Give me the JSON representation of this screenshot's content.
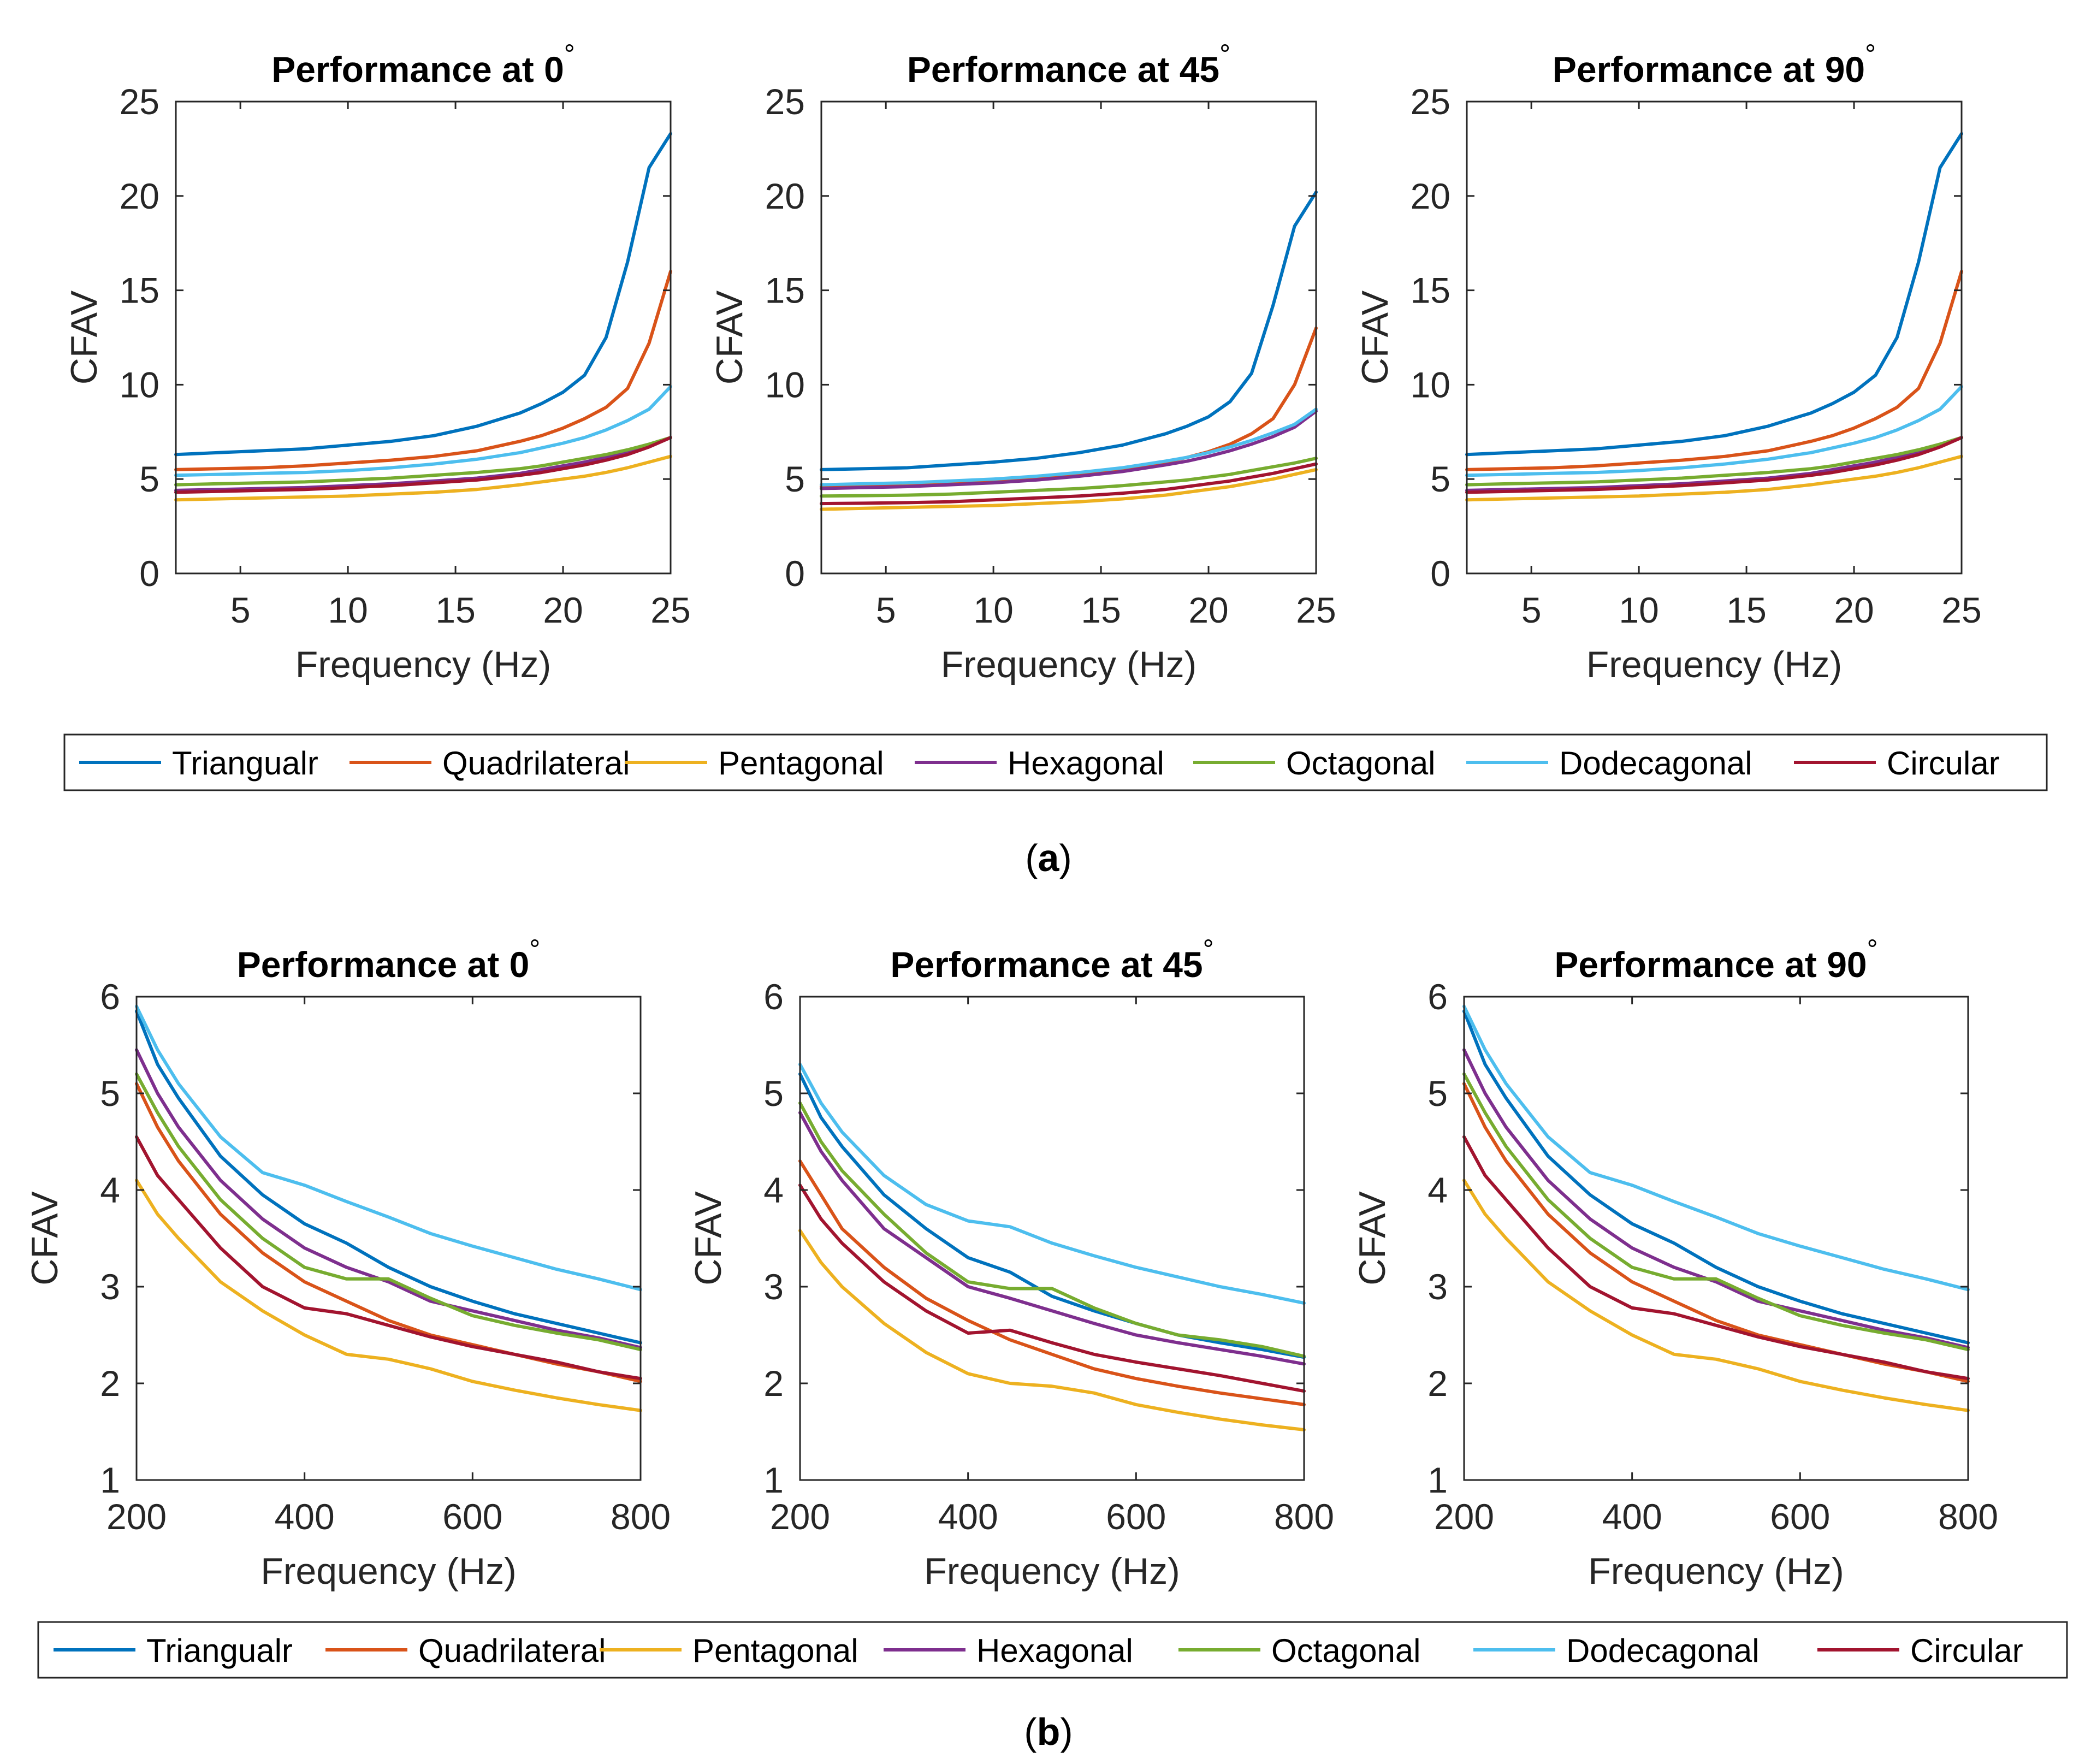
{
  "legend_labels": [
    "Triangualr",
    "Quadrilateral",
    "Pentagonal",
    "Hexagonal",
    "Octagonal",
    "Dodecagonal",
    "Circular"
  ],
  "series_colors": [
    "#0072BD",
    "#D95319",
    "#EDB120",
    "#7E2F8E",
    "#77AC30",
    "#4DBEEE",
    "#A2142F"
  ],
  "captions": {
    "a": {
      "open": "(",
      "letter": "a",
      "close": ")"
    },
    "b": {
      "open": "(",
      "letter": "b",
      "close": ")"
    }
  },
  "chart_data": [
    {
      "panel": "a1",
      "type": "line",
      "title": "Performance at 0",
      "title_suffix": "°",
      "xlabel": "Frequency (Hz)",
      "ylabel": "CFAV",
      "xlim": [
        2,
        25
      ],
      "ylim": [
        0,
        25
      ],
      "xticks": [
        5,
        10,
        15,
        20,
        25
      ],
      "yticks": [
        0,
        5,
        10,
        15,
        20,
        25
      ],
      "grid": false,
      "x": [
        2,
        4,
        6,
        8,
        10,
        12,
        14,
        16,
        18,
        19,
        20,
        21,
        22,
        23,
        24,
        25
      ],
      "series": [
        {
          "name": "Triangualr",
          "values": [
            6.3,
            6.4,
            6.5,
            6.6,
            6.8,
            7.0,
            7.3,
            7.8,
            8.5,
            9.0,
            9.6,
            10.5,
            12.5,
            16.5,
            21.5,
            23.3
          ]
        },
        {
          "name": "Quadrilateral",
          "values": [
            5.5,
            5.55,
            5.6,
            5.7,
            5.85,
            6.0,
            6.2,
            6.5,
            7.0,
            7.3,
            7.7,
            8.2,
            8.8,
            9.8,
            12.2,
            16.0
          ]
        },
        {
          "name": "Pentagonal",
          "values": [
            3.9,
            3.95,
            4.0,
            4.05,
            4.1,
            4.2,
            4.3,
            4.45,
            4.7,
            4.85,
            5.0,
            5.15,
            5.35,
            5.6,
            5.9,
            6.2
          ]
        },
        {
          "name": "Hexagonal",
          "values": [
            4.4,
            4.45,
            4.5,
            4.55,
            4.65,
            4.75,
            4.9,
            5.05,
            5.3,
            5.5,
            5.7,
            5.9,
            6.15,
            6.45,
            6.8,
            7.2
          ]
        },
        {
          "name": "Octagonal",
          "values": [
            4.7,
            4.75,
            4.8,
            4.85,
            4.95,
            5.05,
            5.2,
            5.35,
            5.55,
            5.7,
            5.9,
            6.1,
            6.3,
            6.55,
            6.85,
            7.2
          ]
        },
        {
          "name": "Dodecagonal",
          "values": [
            5.2,
            5.25,
            5.3,
            5.35,
            5.45,
            5.6,
            5.8,
            6.05,
            6.4,
            6.65,
            6.9,
            7.2,
            7.6,
            8.1,
            8.7,
            9.9
          ]
        },
        {
          "name": "Circular",
          "values": [
            4.3,
            4.35,
            4.4,
            4.45,
            4.55,
            4.65,
            4.8,
            4.95,
            5.2,
            5.35,
            5.55,
            5.75,
            6.0,
            6.3,
            6.7,
            7.2
          ]
        }
      ]
    },
    {
      "panel": "a2",
      "type": "line",
      "title": "Performance at 45",
      "title_suffix": "°",
      "xlabel": "Frequency (Hz)",
      "ylabel": "CFAV",
      "xlim": [
        2,
        25
      ],
      "ylim": [
        0,
        25
      ],
      "xticks": [
        5,
        10,
        15,
        20,
        25
      ],
      "yticks": [
        0,
        5,
        10,
        15,
        20,
        25
      ],
      "grid": false,
      "x": [
        2,
        4,
        6,
        8,
        10,
        12,
        14,
        16,
        18,
        19,
        20,
        21,
        22,
        23,
        24,
        25
      ],
      "series": [
        {
          "name": "Triangualr",
          "values": [
            5.5,
            5.55,
            5.6,
            5.75,
            5.9,
            6.1,
            6.4,
            6.8,
            7.4,
            7.8,
            8.3,
            9.1,
            10.6,
            14.2,
            18.4,
            20.2
          ]
        },
        {
          "name": "Quadrilateral",
          "values": [
            4.6,
            4.65,
            4.7,
            4.8,
            4.9,
            5.05,
            5.25,
            5.5,
            5.9,
            6.15,
            6.45,
            6.85,
            7.4,
            8.2,
            10.0,
            13.0
          ]
        },
        {
          "name": "Pentagonal",
          "values": [
            3.4,
            3.45,
            3.5,
            3.55,
            3.6,
            3.7,
            3.8,
            3.95,
            4.15,
            4.3,
            4.45,
            4.6,
            4.8,
            5.0,
            5.25,
            5.5
          ]
        },
        {
          "name": "Hexagonal",
          "values": [
            4.5,
            4.55,
            4.6,
            4.7,
            4.8,
            4.95,
            5.15,
            5.4,
            5.75,
            5.95,
            6.2,
            6.5,
            6.85,
            7.25,
            7.75,
            8.6
          ]
        },
        {
          "name": "Octagonal",
          "values": [
            4.1,
            4.12,
            4.15,
            4.2,
            4.3,
            4.4,
            4.5,
            4.65,
            4.85,
            4.95,
            5.1,
            5.25,
            5.45,
            5.65,
            5.85,
            6.1
          ]
        },
        {
          "name": "Dodecagonal",
          "values": [
            4.7,
            4.75,
            4.8,
            4.9,
            5.0,
            5.15,
            5.35,
            5.6,
            5.95,
            6.15,
            6.4,
            6.7,
            7.05,
            7.45,
            7.9,
            8.7
          ]
        },
        {
          "name": "Circular",
          "values": [
            3.7,
            3.72,
            3.75,
            3.8,
            3.9,
            4.0,
            4.1,
            4.25,
            4.45,
            4.6,
            4.75,
            4.9,
            5.1,
            5.3,
            5.55,
            5.8
          ]
        }
      ]
    },
    {
      "panel": "a3",
      "type": "line",
      "title": "Performance at 90",
      "title_suffix": "°",
      "xlabel": "Frequency (Hz)",
      "ylabel": "CFAV",
      "xlim": [
        2,
        25
      ],
      "ylim": [
        0,
        25
      ],
      "xticks": [
        5,
        10,
        15,
        20,
        25
      ],
      "yticks": [
        0,
        5,
        10,
        15,
        20,
        25
      ],
      "grid": false,
      "x": [
        2,
        4,
        6,
        8,
        10,
        12,
        14,
        16,
        18,
        19,
        20,
        21,
        22,
        23,
        24,
        25
      ],
      "series": [
        {
          "name": "Triangualr",
          "values": [
            6.3,
            6.4,
            6.5,
            6.6,
            6.8,
            7.0,
            7.3,
            7.8,
            8.5,
            9.0,
            9.6,
            10.5,
            12.5,
            16.5,
            21.5,
            23.3
          ]
        },
        {
          "name": "Quadrilateral",
          "values": [
            5.5,
            5.55,
            5.6,
            5.7,
            5.85,
            6.0,
            6.2,
            6.5,
            7.0,
            7.3,
            7.7,
            8.2,
            8.8,
            9.8,
            12.2,
            16.0
          ]
        },
        {
          "name": "Pentagonal",
          "values": [
            3.9,
            3.95,
            4.0,
            4.05,
            4.1,
            4.2,
            4.3,
            4.45,
            4.7,
            4.85,
            5.0,
            5.15,
            5.35,
            5.6,
            5.9,
            6.2
          ]
        },
        {
          "name": "Hexagonal",
          "values": [
            4.4,
            4.45,
            4.5,
            4.55,
            4.65,
            4.75,
            4.9,
            5.05,
            5.3,
            5.5,
            5.7,
            5.9,
            6.15,
            6.45,
            6.8,
            7.2
          ]
        },
        {
          "name": "Octagonal",
          "values": [
            4.7,
            4.75,
            4.8,
            4.85,
            4.95,
            5.05,
            5.2,
            5.35,
            5.55,
            5.7,
            5.9,
            6.1,
            6.3,
            6.55,
            6.85,
            7.2
          ]
        },
        {
          "name": "Dodecagonal",
          "values": [
            5.2,
            5.25,
            5.3,
            5.35,
            5.45,
            5.6,
            5.8,
            6.05,
            6.4,
            6.65,
            6.9,
            7.2,
            7.6,
            8.1,
            8.7,
            9.9
          ]
        },
        {
          "name": "Circular",
          "values": [
            4.3,
            4.35,
            4.4,
            4.45,
            4.55,
            4.65,
            4.8,
            4.95,
            5.2,
            5.35,
            5.55,
            5.75,
            6.0,
            6.3,
            6.7,
            7.2
          ]
        }
      ]
    },
    {
      "panel": "b1",
      "type": "line",
      "title": "Performance at 0",
      "title_suffix": "°",
      "xlabel": "Frequency (Hz)",
      "ylabel": "CFAV",
      "xlim": [
        200,
        800
      ],
      "ylim": [
        1,
        6
      ],
      "xticks": [
        200,
        400,
        600,
        800
      ],
      "yticks": [
        1,
        2,
        3,
        4,
        5,
        6
      ],
      "grid": false,
      "x": [
        200,
        225,
        250,
        300,
        350,
        400,
        450,
        500,
        550,
        600,
        650,
        700,
        750,
        800
      ],
      "series": [
        {
          "name": "Triangualr",
          "values": [
            5.85,
            5.3,
            4.95,
            4.35,
            3.95,
            3.65,
            3.45,
            3.2,
            3.0,
            2.85,
            2.72,
            2.62,
            2.52,
            2.42
          ]
        },
        {
          "name": "Quadrilateral",
          "values": [
            5.1,
            4.65,
            4.3,
            3.75,
            3.35,
            3.05,
            2.85,
            2.65,
            2.5,
            2.4,
            2.3,
            2.2,
            2.12,
            2.02
          ]
        },
        {
          "name": "Pentagonal",
          "values": [
            4.1,
            3.75,
            3.5,
            3.05,
            2.75,
            2.5,
            2.3,
            2.25,
            2.15,
            2.02,
            1.93,
            1.85,
            1.78,
            1.72
          ]
        },
        {
          "name": "Hexagonal",
          "values": [
            5.45,
            5.0,
            4.65,
            4.1,
            3.7,
            3.4,
            3.2,
            3.05,
            2.85,
            2.75,
            2.65,
            2.55,
            2.47,
            2.37
          ]
        },
        {
          "name": "Octagonal",
          "values": [
            5.2,
            4.8,
            4.45,
            3.9,
            3.5,
            3.2,
            3.08,
            3.08,
            2.88,
            2.7,
            2.6,
            2.52,
            2.45,
            2.35
          ]
        },
        {
          "name": "Dodecagonal",
          "values": [
            5.9,
            5.45,
            5.1,
            4.55,
            4.18,
            4.05,
            3.88,
            3.72,
            3.55,
            3.42,
            3.3,
            3.18,
            3.08,
            2.97
          ]
        },
        {
          "name": "Circular",
          "values": [
            4.55,
            4.15,
            3.9,
            3.4,
            3.0,
            2.78,
            2.72,
            2.6,
            2.48,
            2.38,
            2.3,
            2.22,
            2.12,
            2.05
          ]
        }
      ]
    },
    {
      "panel": "b2",
      "type": "line",
      "title": "Performance at 45",
      "title_suffix": "°",
      "xlabel": "Frequency (Hz)",
      "ylabel": "CFAV",
      "xlim": [
        200,
        800
      ],
      "ylim": [
        1,
        6
      ],
      "xticks": [
        200,
        400,
        600,
        800
      ],
      "yticks": [
        1,
        2,
        3,
        4,
        5,
        6
      ],
      "grid": false,
      "x": [
        200,
        225,
        250,
        300,
        350,
        400,
        450,
        500,
        550,
        600,
        650,
        700,
        750,
        800
      ],
      "series": [
        {
          "name": "Triangualr",
          "values": [
            5.2,
            4.75,
            4.45,
            3.95,
            3.6,
            3.3,
            3.15,
            2.9,
            2.75,
            2.62,
            2.5,
            2.42,
            2.35,
            2.27
          ]
        },
        {
          "name": "Quadrilateral",
          "values": [
            4.3,
            3.95,
            3.6,
            3.2,
            2.88,
            2.65,
            2.45,
            2.3,
            2.15,
            2.05,
            1.97,
            1.9,
            1.84,
            1.78
          ]
        },
        {
          "name": "Pentagonal",
          "values": [
            3.58,
            3.25,
            3.0,
            2.62,
            2.32,
            2.1,
            2.0,
            1.97,
            1.9,
            1.78,
            1.7,
            1.63,
            1.57,
            1.52
          ]
        },
        {
          "name": "Hexagonal",
          "values": [
            4.8,
            4.4,
            4.1,
            3.6,
            3.3,
            3.0,
            2.88,
            2.75,
            2.62,
            2.5,
            2.42,
            2.35,
            2.28,
            2.2
          ]
        },
        {
          "name": "Octagonal",
          "values": [
            4.9,
            4.5,
            4.2,
            3.75,
            3.35,
            3.05,
            2.98,
            2.98,
            2.78,
            2.62,
            2.5,
            2.45,
            2.38,
            2.28
          ]
        },
        {
          "name": "Dodecagonal",
          "values": [
            5.3,
            4.9,
            4.6,
            4.15,
            3.85,
            3.68,
            3.62,
            3.45,
            3.32,
            3.2,
            3.1,
            3.0,
            2.92,
            2.83
          ]
        },
        {
          "name": "Circular",
          "values": [
            4.05,
            3.7,
            3.45,
            3.05,
            2.75,
            2.52,
            2.55,
            2.42,
            2.3,
            2.22,
            2.15,
            2.08,
            2.0,
            1.92
          ]
        }
      ]
    },
    {
      "panel": "b3",
      "type": "line",
      "title": "Performance at 90",
      "title_suffix": "°",
      "xlabel": "Frequency (Hz)",
      "ylabel": "CFAV",
      "xlim": [
        200,
        800
      ],
      "ylim": [
        1,
        6
      ],
      "xticks": [
        200,
        400,
        600,
        800
      ],
      "yticks": [
        1,
        2,
        3,
        4,
        5,
        6
      ],
      "grid": false,
      "x": [
        200,
        225,
        250,
        300,
        350,
        400,
        450,
        500,
        550,
        600,
        650,
        700,
        750,
        800
      ],
      "series": [
        {
          "name": "Triangualr",
          "values": [
            5.85,
            5.3,
            4.95,
            4.35,
            3.95,
            3.65,
            3.45,
            3.2,
            3.0,
            2.85,
            2.72,
            2.62,
            2.52,
            2.42
          ]
        },
        {
          "name": "Quadrilateral",
          "values": [
            5.1,
            4.65,
            4.3,
            3.75,
            3.35,
            3.05,
            2.85,
            2.65,
            2.5,
            2.4,
            2.3,
            2.2,
            2.12,
            2.02
          ]
        },
        {
          "name": "Pentagonal",
          "values": [
            4.1,
            3.75,
            3.5,
            3.05,
            2.75,
            2.5,
            2.3,
            2.25,
            2.15,
            2.02,
            1.93,
            1.85,
            1.78,
            1.72
          ]
        },
        {
          "name": "Hexagonal",
          "values": [
            5.45,
            5.0,
            4.65,
            4.1,
            3.7,
            3.4,
            3.2,
            3.05,
            2.85,
            2.75,
            2.65,
            2.55,
            2.47,
            2.37
          ]
        },
        {
          "name": "Octagonal",
          "values": [
            5.2,
            4.8,
            4.45,
            3.9,
            3.5,
            3.2,
            3.08,
            3.08,
            2.88,
            2.7,
            2.6,
            2.52,
            2.45,
            2.35
          ]
        },
        {
          "name": "Dodecagonal",
          "values": [
            5.9,
            5.45,
            5.1,
            4.55,
            4.18,
            4.05,
            3.88,
            3.72,
            3.55,
            3.42,
            3.3,
            3.18,
            3.08,
            2.97
          ]
        },
        {
          "name": "Circular",
          "values": [
            4.55,
            4.15,
            3.9,
            3.4,
            3.0,
            2.78,
            2.72,
            2.6,
            2.48,
            2.38,
            2.3,
            2.22,
            2.12,
            2.05
          ]
        }
      ]
    }
  ]
}
